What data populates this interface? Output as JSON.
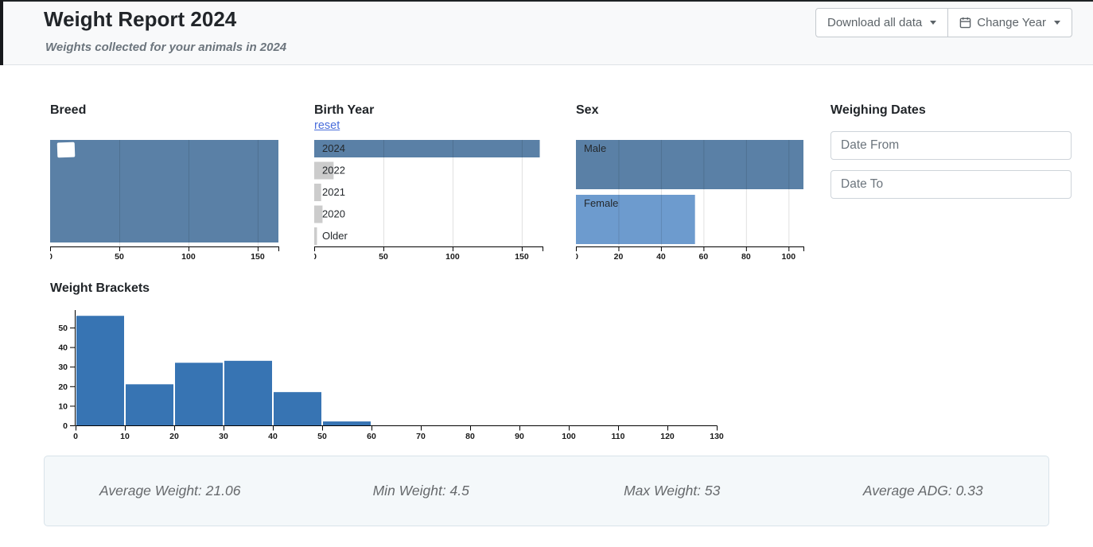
{
  "header": {
    "title": "Weight Report 2024",
    "subtitle": "Weights collected for your animals in 2024",
    "buttons": {
      "download": "Download all data",
      "change_year": "Change Year"
    }
  },
  "filters": {
    "breed_heading": "Breed",
    "birth_year_heading": "Birth Year",
    "reset_label": "reset",
    "sex_heading": "Sex",
    "weighing_dates_heading": "Weighing Dates",
    "date_from_placeholder": "Date From",
    "date_to_placeholder": "Date To"
  },
  "weight_brackets_heading": "Weight Brackets",
  "stats": {
    "average_weight": "Average Weight: 21.06",
    "min_weight": "Min Weight: 4.5",
    "max_weight": "Max Weight: 53",
    "average_adg": "Average ADG: 0.33"
  },
  "colors": {
    "selected_bar": "#5a80a6",
    "female_bar": "#6d9bce",
    "deselected_bar": "#cccccc",
    "histogram_bar": "#3774b3",
    "link": "#4a6edb"
  },
  "chart_data": [
    {
      "id": "breed",
      "type": "bar",
      "orientation": "horizontal",
      "title": "Breed",
      "categories": [
        ""
      ],
      "values": [
        165
      ],
      "colors": [
        "#5a80a6"
      ],
      "xlim": [
        0,
        165
      ],
      "xticks": [
        0,
        50,
        100,
        150
      ],
      "label_redacted": true,
      "grid": true
    },
    {
      "id": "birth_year",
      "type": "bar",
      "orientation": "horizontal",
      "title": "Birth Year",
      "categories": [
        "2024",
        "2022",
        "2021",
        "2020",
        "Older"
      ],
      "values": [
        163,
        14,
        5,
        6,
        2
      ],
      "selected": "2024",
      "colors": [
        "#5a80a6",
        "#cccccc",
        "#cccccc",
        "#cccccc",
        "#cccccc"
      ],
      "xlim": [
        0,
        165
      ],
      "xticks": [
        0,
        50,
        100,
        150
      ],
      "grid": true
    },
    {
      "id": "sex",
      "type": "bar",
      "orientation": "horizontal",
      "title": "Sex",
      "categories": [
        "Male",
        "Female"
      ],
      "values": [
        107,
        56
      ],
      "colors": [
        "#5a80a6",
        "#6d9bce"
      ],
      "xlim": [
        0,
        107
      ],
      "xticks": [
        0,
        20,
        40,
        60,
        80,
        100
      ],
      "grid": true
    },
    {
      "id": "weight_brackets",
      "type": "bar",
      "orientation": "vertical",
      "title": "Weight Brackets",
      "bins": [
        {
          "x0": 0,
          "x1": 10,
          "count": 56
        },
        {
          "x0": 10,
          "x1": 20,
          "count": 21
        },
        {
          "x0": 20,
          "x1": 30,
          "count": 32
        },
        {
          "x0": 30,
          "x1": 40,
          "count": 33
        },
        {
          "x0": 40,
          "x1": 50,
          "count": 17
        },
        {
          "x0": 50,
          "x1": 60,
          "count": 2
        }
      ],
      "xlim": [
        0,
        130
      ],
      "xticks": [
        0,
        10,
        20,
        30,
        40,
        50,
        60,
        70,
        80,
        90,
        100,
        110,
        120,
        130
      ],
      "ylim": [
        0,
        58
      ],
      "yticks": [
        0,
        10,
        20,
        30,
        40,
        50
      ],
      "color": "#3774b3",
      "grid": false
    }
  ]
}
